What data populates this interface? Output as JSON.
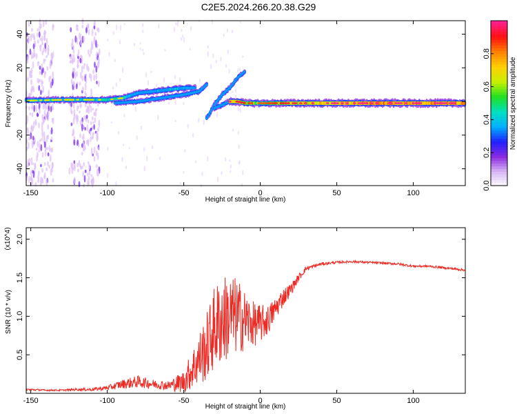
{
  "title": "C2E5.2024.266.20.38.G29",
  "colors": {
    "snr_line": "#ee2a24",
    "colormap": [
      "#ffffff",
      "#d9b8f5",
      "#8a2be2",
      "#2020ff",
      "#00b0ff",
      "#00e0c0",
      "#20e020",
      "#c8f000",
      "#ffd000",
      "#ff8000",
      "#ff1010",
      "#ff2090"
    ]
  },
  "chart_data": [
    {
      "type": "heatmap",
      "title": "C2E5.2024.266.20.38.G29",
      "xlabel": "Height of straight line (km)",
      "ylabel": "Frequency (Hz)",
      "xlim": [
        -153,
        134
      ],
      "ylim": [
        -50,
        48
      ],
      "x_ticks": [
        -150,
        -100,
        -50,
        0,
        50,
        100
      ],
      "y_ticks": [
        -40,
        -20,
        0,
        20,
        40
      ],
      "colorbar": {
        "label": "Normalized spectral amplitude",
        "range": [
          0,
          1
        ],
        "ticks": [
          "0.0",
          "0.2",
          "0.4",
          "0.6",
          "0.8"
        ],
        "tick_values": [
          0,
          0.2,
          0.4,
          0.6,
          0.8
        ]
      },
      "ridges": [
        {
          "x": [
            -153,
            -130,
            -110,
            -100,
            -90,
            -80,
            -70,
            -60,
            -50,
            -42
          ],
          "y": [
            0.5,
            1,
            1,
            1,
            2,
            5,
            6,
            7,
            8,
            8
          ],
          "amplitude": [
            0.5,
            0.55,
            0.5,
            0.6,
            0.55,
            0.45,
            0.45,
            0.5,
            0.5,
            0.45
          ]
        },
        {
          "x": [
            -95,
            -80,
            -65,
            -50,
            -40,
            -35
          ],
          "y": [
            -1,
            0,
            2,
            4,
            6,
            10
          ],
          "amplitude": [
            0.25,
            0.3,
            0.35,
            0.35,
            0.35,
            0.3
          ]
        },
        {
          "x": [
            -35,
            -30,
            -25,
            -20,
            -15,
            -10
          ],
          "y": [
            -10,
            -2,
            4,
            8,
            14,
            18
          ],
          "amplitude": [
            0.3,
            0.35,
            0.35,
            0.3,
            0.25,
            0.2
          ]
        },
        {
          "x": [
            -30,
            -25,
            -20,
            -15
          ],
          "y": [
            -4,
            -2,
            0,
            0
          ],
          "amplitude": [
            0.35,
            0.35,
            0.3,
            0.3
          ]
        },
        {
          "x": [
            -20,
            -15,
            -10,
            0,
            10,
            20,
            40,
            60,
            80,
            95,
            110,
            134
          ],
          "y": [
            0,
            0,
            -1,
            -1,
            -1,
            -1,
            -1,
            -1,
            -1,
            -1,
            -1,
            -1
          ],
          "amplitude": [
            0.85,
            0.8,
            0.75,
            0.7,
            0.75,
            0.8,
            0.85,
            0.9,
            0.95,
            0.9,
            0.95,
            0.9
          ]
        }
      ],
      "noise_bands_x": [
        [
          -153,
          -135
        ],
        [
          -125,
          -105
        ]
      ]
    },
    {
      "type": "line",
      "xlabel": "Height of straight line (km)",
      "ylabel": "SNR (10 * v/v)",
      "y_multiplier": "(x10^4)",
      "xlim": [
        -153,
        134
      ],
      "ylim": [
        0,
        2.15
      ],
      "x_ticks": [
        -150,
        -100,
        -50,
        0,
        50,
        100
      ],
      "y_ticks": [
        0.5,
        1.0,
        1.5,
        2.0
      ],
      "y_tick_labels": [
        "0.5",
        "1.0",
        "1.5",
        "2.0"
      ],
      "series": [
        {
          "x": [
            -153,
            -140,
            -130,
            -120,
            -110,
            -100,
            -90,
            -80,
            -70,
            -60,
            -50,
            -45,
            -40,
            -35,
            -30,
            -25,
            -20,
            -15,
            -10,
            -5,
            0,
            5,
            10,
            15,
            20,
            25,
            30,
            40,
            50,
            60,
            70,
            80,
            90,
            100,
            110,
            120,
            134
          ],
          "y": [
            0.05,
            0.04,
            0.04,
            0.05,
            0.05,
            0.07,
            0.12,
            0.15,
            0.12,
            0.1,
            0.15,
            0.3,
            0.45,
            0.6,
            0.85,
            0.95,
            1.0,
            1.0,
            0.95,
            0.9,
            0.9,
            0.95,
            1.1,
            1.25,
            1.35,
            1.5,
            1.62,
            1.68,
            1.7,
            1.71,
            1.7,
            1.69,
            1.68,
            1.65,
            1.65,
            1.63,
            1.6
          ],
          "amplitude": [
            0.015,
            0.01,
            0.01,
            0.015,
            0.02,
            0.03,
            0.06,
            0.08,
            0.06,
            0.06,
            0.15,
            0.25,
            0.35,
            0.45,
            0.55,
            0.6,
            0.55,
            0.5,
            0.4,
            0.3,
            0.25,
            0.2,
            0.15,
            0.12,
            0.08,
            0.05,
            0.03,
            0.02,
            0.015,
            0.015,
            0.015,
            0.015,
            0.015,
            0.015,
            0.015,
            0.015,
            0.015
          ]
        }
      ]
    }
  ]
}
